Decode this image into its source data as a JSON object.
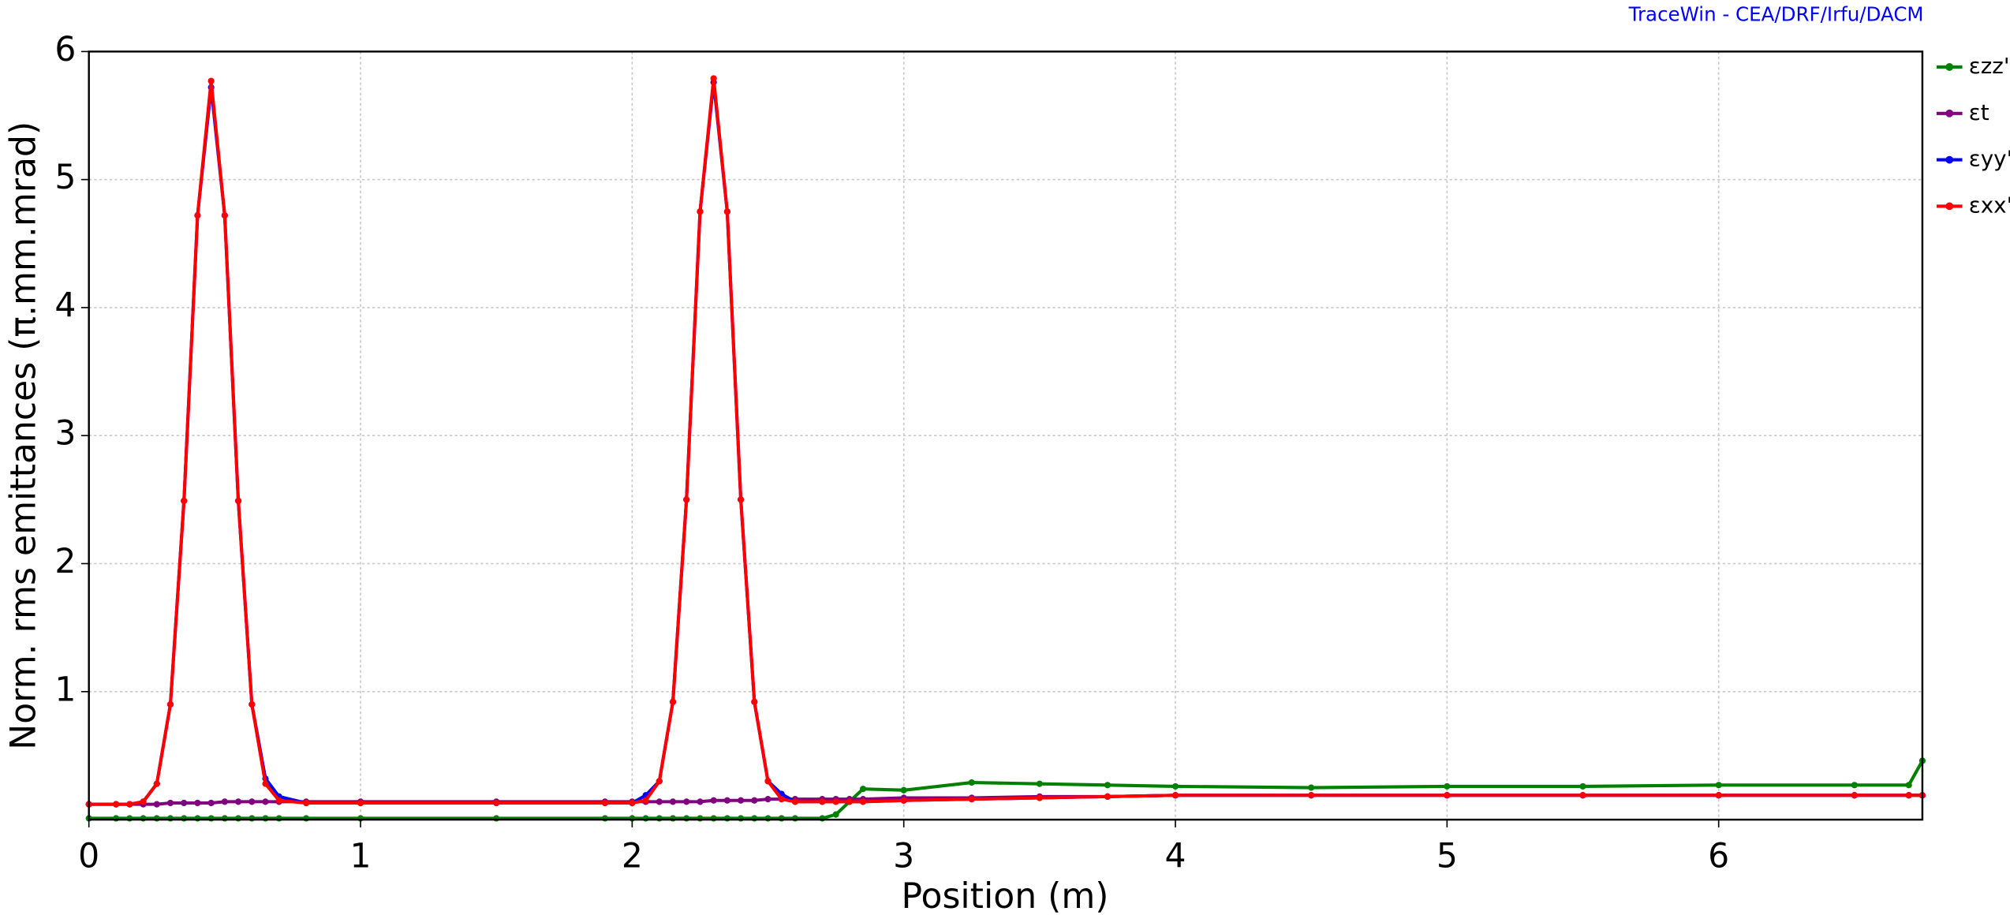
{
  "chart_data": {
    "type": "line",
    "title": "TraceWin - CEA/DRF/Irfu/DACM",
    "xlabel": "Position (m)",
    "ylabel": "Norm. rms emittances (π.mm.mrad)",
    "xlim": [
      0,
      6.75
    ],
    "ylim": [
      0,
      6
    ],
    "xticks": [
      0,
      1,
      2,
      3,
      4,
      5,
      6
    ],
    "yticks": [
      1,
      2,
      3,
      4,
      5,
      6
    ],
    "grid": true,
    "legend": "right",
    "x": [
      0,
      0.1,
      0.15,
      0.2,
      0.25,
      0.3,
      0.35,
      0.4,
      0.45,
      0.5,
      0.55,
      0.6,
      0.65,
      0.7,
      0.8,
      1,
      1.5,
      1.9,
      2,
      2.05,
      2.1,
      2.15,
      2.2,
      2.25,
      2.3,
      2.35,
      2.4,
      2.45,
      2.5,
      2.55,
      2.6,
      2.7,
      2.75,
      2.8,
      2.85,
      3,
      3.25,
      3.5,
      3.75,
      4,
      4.5,
      5,
      5.5,
      6,
      6.5,
      6.7,
      6.75
    ],
    "series": [
      {
        "name": "εzz'",
        "color": "#008000",
        "values": [
          0.01,
          0.01,
          0.01,
          0.01,
          0.01,
          0.01,
          0.01,
          0.01,
          0.01,
          0.01,
          0.01,
          0.01,
          0.01,
          0.01,
          0.01,
          0.01,
          0.01,
          0.01,
          0.01,
          0.01,
          0.01,
          0.01,
          0.01,
          0.01,
          0.01,
          0.01,
          0.01,
          0.01,
          0.01,
          0.01,
          0.01,
          0.01,
          0.04,
          0.14,
          0.24,
          0.23,
          0.29,
          0.28,
          0.27,
          0.26,
          0.25,
          0.26,
          0.26,
          0.27,
          0.27,
          0.27,
          0.46
        ]
      },
      {
        "name": "εt",
        "color": "#800080",
        "values": [
          0.12,
          0.12,
          0.12,
          0.12,
          0.12,
          0.13,
          0.13,
          0.13,
          0.13,
          0.14,
          0.14,
          0.14,
          0.14,
          0.14,
          0.14,
          0.14,
          0.14,
          0.14,
          0.14,
          0.14,
          0.14,
          0.14,
          0.14,
          0.14,
          0.15,
          0.15,
          0.15,
          0.15,
          0.16,
          0.16,
          0.16,
          0.16,
          0.16,
          0.16,
          0.16,
          0.17,
          0.17,
          0.18,
          0.18,
          0.19,
          0.19,
          0.19,
          0.19,
          0.19,
          0.19,
          0.19,
          0.19
        ]
      },
      {
        "name": "εyy'",
        "color": "#0000ff",
        "values": [
          0.12,
          0.12,
          0.12,
          0.14,
          0.28,
          0.9,
          2.49,
          4.72,
          5.72,
          4.72,
          2.49,
          0.9,
          0.32,
          0.18,
          0.13,
          0.13,
          0.13,
          0.13,
          0.13,
          0.19,
          0.3,
          0.92,
          2.5,
          4.75,
          5.76,
          4.75,
          2.5,
          0.92,
          0.3,
          0.2,
          0.14,
          0.14,
          0.14,
          0.14,
          0.14,
          0.15,
          0.16,
          0.17,
          0.18,
          0.19,
          0.19,
          0.19,
          0.19,
          0.19,
          0.19,
          0.19,
          0.19
        ]
      },
      {
        "name": "εxx'",
        "color": "#ff0000",
        "values": [
          0.12,
          0.12,
          0.12,
          0.14,
          0.28,
          0.9,
          2.49,
          4.72,
          5.77,
          4.72,
          2.49,
          0.9,
          0.28,
          0.15,
          0.13,
          0.13,
          0.13,
          0.13,
          0.13,
          0.15,
          0.3,
          0.92,
          2.5,
          4.75,
          5.79,
          4.75,
          2.5,
          0.92,
          0.3,
          0.16,
          0.14,
          0.14,
          0.14,
          0.14,
          0.14,
          0.15,
          0.16,
          0.17,
          0.18,
          0.19,
          0.19,
          0.19,
          0.19,
          0.19,
          0.19,
          0.19,
          0.19
        ]
      }
    ]
  }
}
